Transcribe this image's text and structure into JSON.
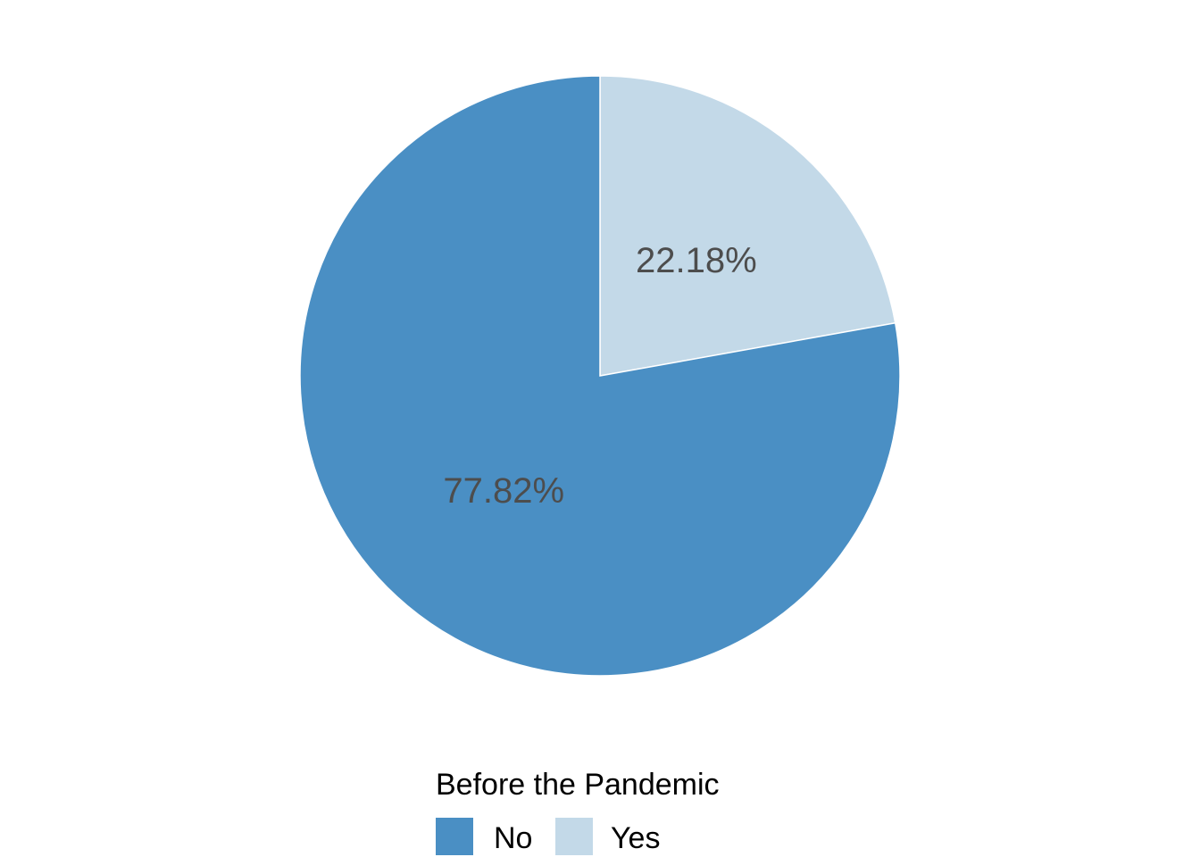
{
  "chart_data": {
    "type": "pie",
    "categories": [
      "No",
      "Yes"
    ],
    "values": [
      77.82,
      22.18
    ],
    "labels": [
      "77.82%",
      "22.18%"
    ],
    "colors": [
      "#4a8fc4",
      "#c3d9e8"
    ],
    "start": "12 o'clock",
    "direction": "clockwise from Yes",
    "legend": {
      "title": "Before the Pandemic",
      "position": "bottom"
    }
  }
}
